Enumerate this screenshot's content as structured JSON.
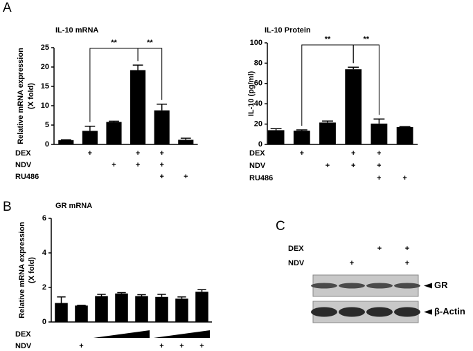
{
  "chart_data": [
    {
      "type": "bar",
      "panel": "A",
      "title": "IL-10 mRNA",
      "ylabel": [
        "Relative mRNA expression",
        "(X fold)"
      ],
      "values": [
        1.1,
        3.5,
        5.8,
        19.2,
        8.8,
        1.2
      ],
      "errors": [
        0.1,
        1.2,
        0.2,
        1.3,
        1.6,
        0.4
      ],
      "color": "#000000",
      "ylim": [
        0,
        25
      ],
      "yticks": [
        0,
        5,
        10,
        15,
        20,
        25
      ],
      "annotations": [
        "**",
        "**"
      ],
      "treatments": [
        {
          "name": "DEX",
          "marks": [
            null,
            "+",
            null,
            "+",
            "+",
            null
          ]
        },
        {
          "name": "NDV",
          "marks": [
            null,
            null,
            "+",
            "+",
            "+",
            null
          ]
        },
        {
          "name": "RU486",
          "marks": [
            null,
            null,
            null,
            null,
            "+",
            "+"
          ]
        }
      ]
    },
    {
      "type": "bar",
      "title": "IL-10 Protein",
      "ylabel": [
        "IL-10 (pg/ml)"
      ],
      "values": [
        14,
        13.5,
        21.5,
        74,
        20.5,
        17
      ],
      "errors": [
        1.5,
        0.8,
        1.5,
        2,
        4.5,
        0.5
      ],
      "color": "#000000",
      "ylim": [
        0,
        100
      ],
      "yticks": [
        0,
        20,
        40,
        60,
        80,
        100
      ],
      "annotations": [
        "**",
        "**"
      ],
      "treatments": [
        {
          "name": "DEX",
          "marks": [
            null,
            "+",
            null,
            "+",
            "+",
            null
          ]
        },
        {
          "name": "NDV",
          "marks": [
            null,
            null,
            "+",
            "+",
            "+",
            null
          ]
        },
        {
          "name": "RU486",
          "marks": [
            null,
            null,
            null,
            null,
            "+",
            "+"
          ]
        }
      ]
    },
    {
      "type": "bar",
      "panel": "B",
      "title": "GR mRNA",
      "ylabel": [
        "Relative mRNA expression",
        "(X fold)"
      ],
      "values": [
        1.1,
        0.95,
        1.5,
        1.65,
        1.5,
        1.45,
        1.35,
        1.75
      ],
      "errors": [
        0.35,
        0.02,
        0.1,
        0.05,
        0.08,
        0.15,
        0.1,
        0.12
      ],
      "color": "#000000",
      "ylim": [
        0,
        6
      ],
      "yticks": [
        0,
        2,
        4,
        6
      ],
      "treatments": [
        {
          "name": "DEX"
        },
        {
          "name": "NDV",
          "marks": [
            null,
            "+",
            null,
            null,
            null,
            "+",
            "+",
            "+"
          ]
        }
      ]
    },
    {
      "type": "blot",
      "panel": "C",
      "treatments": [
        {
          "name": "DEX",
          "marks": [
            null,
            null,
            "+",
            "+"
          ]
        },
        {
          "name": "NDV",
          "marks": [
            null,
            "+",
            null,
            "+"
          ]
        }
      ],
      "bands": [
        "GR",
        "β-Actin"
      ]
    }
  ]
}
